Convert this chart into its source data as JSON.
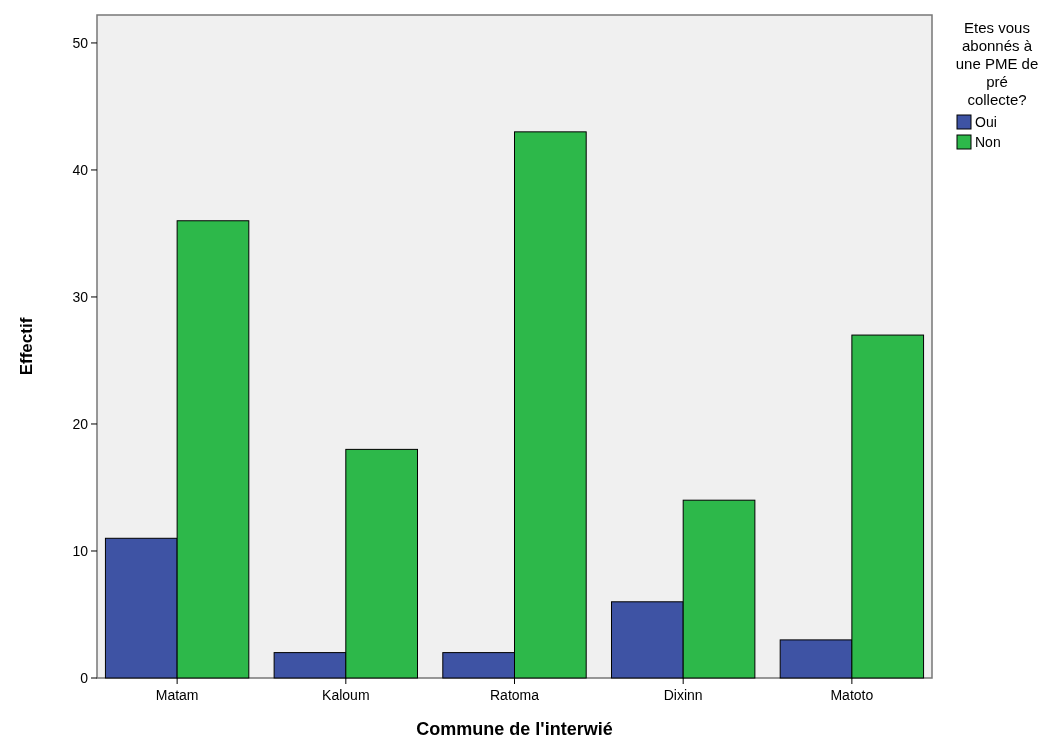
{
  "chart_data": {
    "type": "bar",
    "xlabel": "Commune de l'interwié",
    "ylabel": "Effectif",
    "legend_title": "Etes vous abonnés à une PME de pré collecte?",
    "categories": [
      "Matam",
      "Kaloum",
      "Ratoma",
      "Dixinn",
      "Matoto"
    ],
    "series": [
      {
        "name": "Oui",
        "color": "#3e53a4",
        "values": [
          11,
          2,
          2,
          6,
          3
        ]
      },
      {
        "name": "Non",
        "color": "#2db84a",
        "values": [
          36,
          18,
          43,
          14,
          27
        ]
      }
    ],
    "ylim": [
      0,
      52.2
    ],
    "yticks": [
      0,
      10,
      20,
      30,
      40,
      50
    ],
    "grid": false,
    "legend": "right"
  }
}
